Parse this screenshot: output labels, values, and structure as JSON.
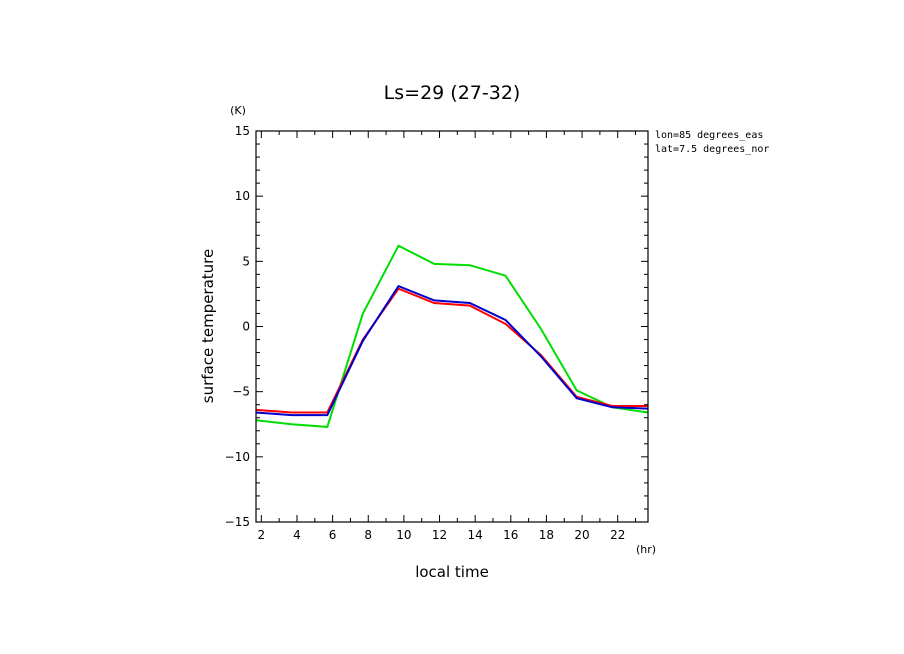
{
  "chart_data": {
    "type": "line",
    "title": "Ls=29 (27-32)",
    "xlabel": "local time",
    "ylabel": "surface temperature",
    "x_unit": "(hr)",
    "y_unit": "(K)",
    "xlim": [
      1.7,
      23.7
    ],
    "ylim": [
      -15,
      15
    ],
    "x_ticks": [
      2,
      4,
      6,
      8,
      10,
      12,
      14,
      16,
      18,
      20,
      22
    ],
    "y_ticks": [
      -15,
      -10,
      -5,
      0,
      5,
      10,
      15
    ],
    "annotations": [
      "lon=85 degrees_eas",
      "lat=7.5 degrees_nor"
    ],
    "grid": false,
    "legend": "none",
    "x": [
      1.7,
      3.7,
      5.7,
      7.7,
      9.7,
      11.7,
      13.7,
      15.7,
      17.7,
      19.7,
      21.7,
      23.7
    ],
    "series": [
      {
        "color": "#00dd00",
        "values": [
          -7.2,
          -7.5,
          -7.7,
          1.0,
          6.2,
          4.8,
          4.7,
          3.9,
          -0.2,
          -4.9,
          -6.2,
          -6.6
        ]
      },
      {
        "color": "#ff0000",
        "values": [
          -6.4,
          -6.6,
          -6.6,
          -1.0,
          2.9,
          1.8,
          1.6,
          0.2,
          -2.2,
          -5.4,
          -6.1,
          -6.1
        ]
      },
      {
        "color": "#0000cc",
        "values": [
          -6.6,
          -6.8,
          -6.8,
          -1.1,
          3.1,
          2.0,
          1.8,
          0.5,
          -2.3,
          -5.5,
          -6.2,
          -6.3
        ]
      }
    ]
  }
}
